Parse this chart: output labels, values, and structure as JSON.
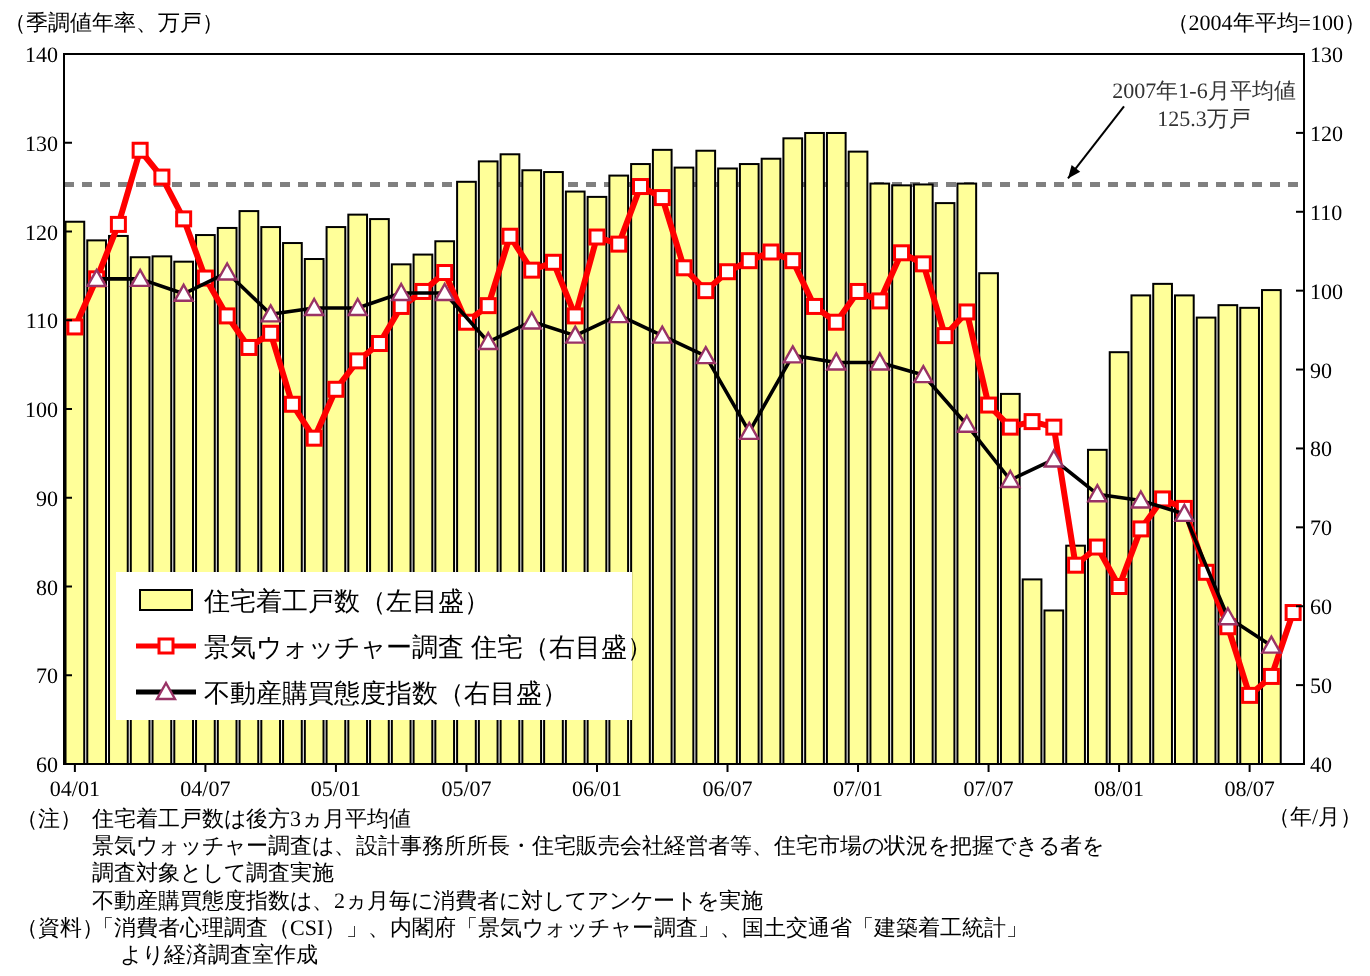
{
  "chart_data": {
    "type": "bar",
    "ylabel": "（季調値年率、万戸）",
    "y2label": "（2004年平均=100）",
    "xlabel": "（年/月）",
    "categories": [
      "04/01",
      null,
      null,
      null,
      null,
      null,
      "04/07",
      null,
      null,
      null,
      null,
      null,
      "05/01",
      null,
      null,
      null,
      null,
      null,
      "05/07",
      null,
      null,
      null,
      null,
      null,
      "06/01",
      null,
      null,
      null,
      null,
      null,
      "06/07",
      null,
      null,
      null,
      null,
      null,
      "07/01",
      null,
      null,
      null,
      null,
      null,
      "07/07",
      null,
      null,
      null,
      null,
      null,
      "08/01",
      null,
      null,
      null,
      null,
      null,
      "08/07",
      null,
      null
    ],
    "series": [
      {
        "name": "住宅着工戸数（左目盛）",
        "color": "#ffff99",
        "values": [
          121.1,
          119.0,
          119.5,
          117.1,
          117.2,
          116.6,
          119.6,
          120.4,
          122.3,
          120.5,
          118.7,
          116.9,
          120.5,
          121.9,
          121.4,
          116.3,
          117.4,
          118.9,
          125.6,
          127.9,
          128.7,
          126.9,
          126.7,
          124.5,
          123.9,
          126.3,
          127.6,
          129.2,
          127.2,
          129.1,
          127.1,
          127.6,
          128.2,
          130.5,
          131.1,
          131.1,
          129.0,
          125.4,
          125.2,
          125.3,
          123.2,
          125.4,
          115.3,
          101.7,
          80.8,
          77.3,
          84.6,
          95.4,
          106.4,
          112.8,
          114.1,
          112.8,
          110.3,
          111.7,
          111.4,
          113.4,
          null
        ]
      },
      {
        "name": "景気ウォッチャー調査 住宅（右目盛）",
        "type": "line",
        "axis": "y2",
        "color": "#ff0000",
        "marker": "square",
        "values": [
          95.4,
          101.5,
          108.4,
          117.8,
          114.4,
          109.1,
          101.6,
          96.8,
          92.8,
          94.6,
          85.6,
          81.3,
          87.5,
          91.1,
          93.3,
          98.0,
          99.9,
          102.3,
          96.0,
          98.1,
          106.9,
          102.6,
          103.6,
          96.8,
          106.8,
          105.9,
          113.2,
          111.8,
          102.9,
          100.0,
          102.4,
          103.8,
          104.9,
          103.8,
          98.0,
          96.0,
          99.9,
          98.7,
          104.8,
          103.4,
          94.3,
          97.3,
          85.5,
          82.7,
          83.4,
          82.7,
          65.2,
          67.5,
          62.5,
          69.8,
          73.6,
          72.4,
          64.3,
          57.4,
          48.7,
          51.1,
          59.2
        ]
      },
      {
        "name": "不動産購買態度指数（右目盛）",
        "type": "line",
        "axis": "y2",
        "color": "#000000",
        "marker": "triangle",
        "values": [
          null,
          101.5,
          null,
          101.5,
          null,
          99.6,
          null,
          102.3,
          null,
          97.0,
          null,
          97.8,
          null,
          97.8,
          null,
          99.7,
          null,
          99.7,
          null,
          93.5,
          null,
          96.1,
          null,
          94.3,
          null,
          96.9,
          null,
          94.3,
          null,
          91.7,
          null,
          82.1,
          null,
          91.8,
          null,
          90.9,
          null,
          90.9,
          null,
          89.3,
          null,
          83.0,
          null,
          76.0,
          null,
          78.6,
          null,
          74.2,
          null,
          73.4,
          null,
          71.7,
          null,
          58.6,
          null,
          55.0,
          null
        ]
      }
    ],
    "ylim": [
      60,
      140
    ],
    "yticks": [
      60,
      70,
      80,
      90,
      100,
      110,
      120,
      130,
      140
    ],
    "y2lim": [
      40,
      130
    ],
    "y2ticks": [
      40,
      50,
      60,
      70,
      80,
      90,
      100,
      110,
      120,
      130
    ],
    "ref_lines": [
      {
        "axis": "y",
        "value": 125.3,
        "label": "2007年1-6月平均値\n125.3万戸",
        "color": "#808080",
        "line_style": "dashed"
      }
    ],
    "legend": "bottom left",
    "grid": false,
    "annotations": [
      "（注）",
      "住宅着工戸数は後方3ヵ月平均値",
      "景気ウォッチャー調査は、設計事務所所長・住宅販売会社経営者等、住宅市場の状況を把握できる者を",
      "調査対象として調査実施",
      "不動産購買態度指数は、2ヵ月毎に消費者に対してアンケートを実施",
      "（資料）",
      "「消費者心理調査（CSI）」、内閣府「景気ウォッチャー調査」、国土交通省「建築着工統計」",
      "より経済調査室作成"
    ]
  }
}
